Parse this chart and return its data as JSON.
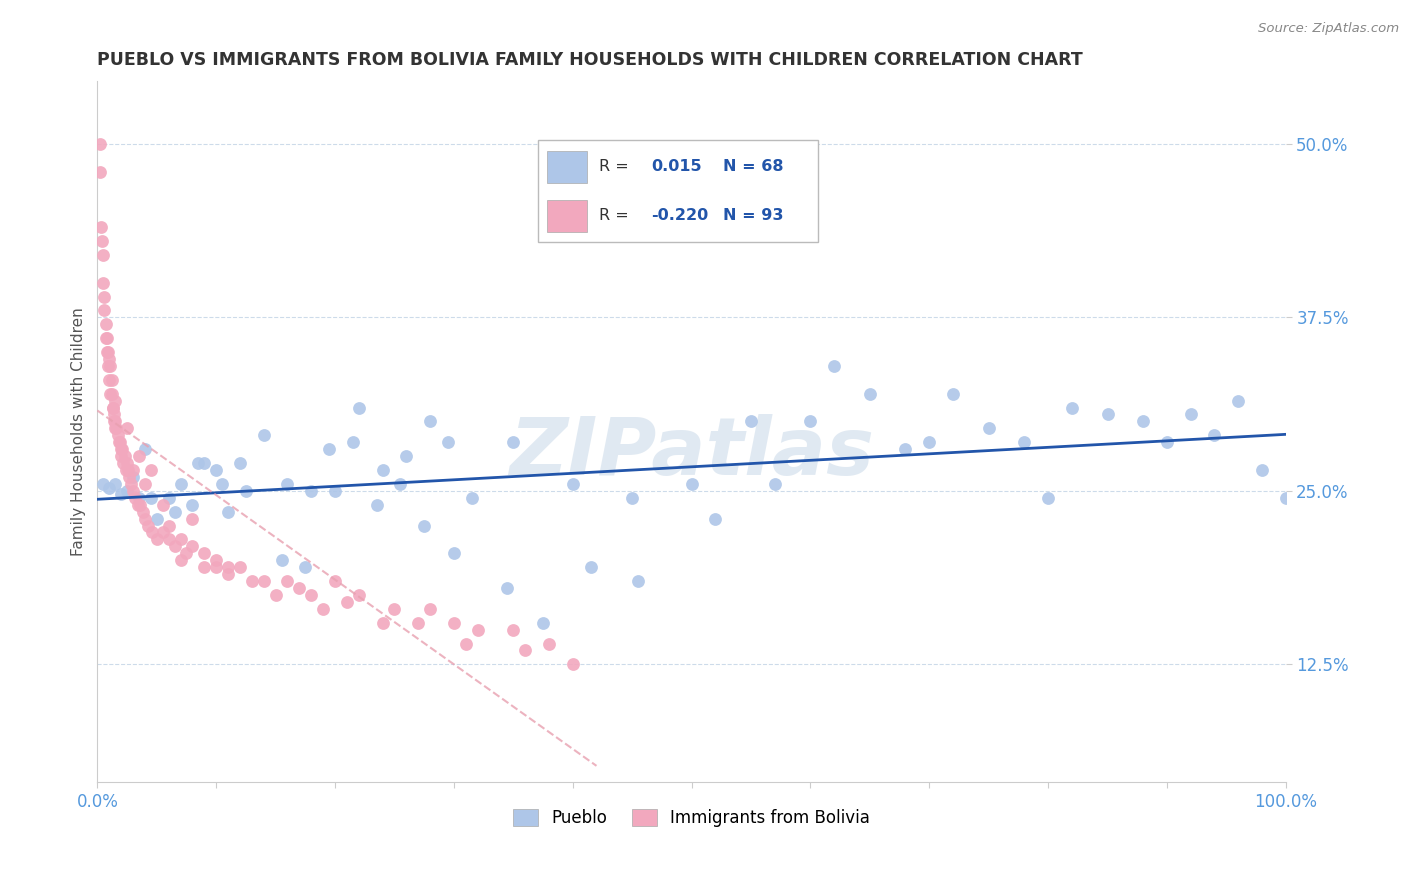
{
  "title": "PUEBLO VS IMMIGRANTS FROM BOLIVIA FAMILY HOUSEHOLDS WITH CHILDREN CORRELATION CHART",
  "source": "Source: ZipAtlas.com",
  "ylabel": "Family Households with Children",
  "yticks": [
    0.125,
    0.25,
    0.375,
    0.5
  ],
  "ytick_labels": [
    "12.5%",
    "25.0%",
    "37.5%",
    "50.0%"
  ],
  "xlim": [
    0.0,
    1.0
  ],
  "ylim": [
    0.04,
    0.545
  ],
  "legend_blue_r": "R =  0.015",
  "legend_blue_n": "N = 68",
  "legend_pink_r": "R = -0.220",
  "legend_pink_n": "N = 93",
  "blue_color": "#aec6e8",
  "pink_color": "#f2a8be",
  "blue_line_color": "#2255aa",
  "pink_line_color": "#e8a0b0",
  "watermark": "ZIPatlas",
  "tick_color": "#5599dd",
  "label_color": "#555555",
  "legend_text_color": "#2255aa",
  "blue_x": [
    0.005,
    0.01,
    0.02,
    0.025,
    0.03,
    0.035,
    0.04,
    0.05,
    0.06,
    0.07,
    0.08,
    0.09,
    0.1,
    0.11,
    0.12,
    0.14,
    0.16,
    0.18,
    0.2,
    0.22,
    0.24,
    0.26,
    0.28,
    0.3,
    0.35,
    0.4,
    0.45,
    0.5,
    0.52,
    0.55,
    0.57,
    0.6,
    0.62,
    0.65,
    0.68,
    0.7,
    0.72,
    0.75,
    0.78,
    0.8,
    0.82,
    0.85,
    0.88,
    0.9,
    0.92,
    0.94,
    0.96,
    0.98,
    1.0,
    0.015,
    0.045,
    0.065,
    0.085,
    0.105,
    0.125,
    0.155,
    0.175,
    0.195,
    0.215,
    0.235,
    0.255,
    0.275,
    0.295,
    0.315,
    0.345,
    0.375,
    0.415,
    0.455
  ],
  "blue_y": [
    0.255,
    0.252,
    0.248,
    0.25,
    0.26,
    0.245,
    0.28,
    0.23,
    0.245,
    0.255,
    0.24,
    0.27,
    0.265,
    0.235,
    0.27,
    0.29,
    0.255,
    0.25,
    0.25,
    0.31,
    0.265,
    0.275,
    0.3,
    0.205,
    0.285,
    0.255,
    0.245,
    0.255,
    0.23,
    0.3,
    0.255,
    0.3,
    0.34,
    0.32,
    0.28,
    0.285,
    0.32,
    0.295,
    0.285,
    0.245,
    0.31,
    0.305,
    0.3,
    0.285,
    0.305,
    0.29,
    0.315,
    0.265,
    0.245,
    0.255,
    0.245,
    0.235,
    0.27,
    0.255,
    0.25,
    0.2,
    0.195,
    0.28,
    0.285,
    0.24,
    0.255,
    0.225,
    0.285,
    0.245,
    0.18,
    0.155,
    0.195,
    0.185
  ],
  "pink_x": [
    0.002,
    0.003,
    0.004,
    0.005,
    0.005,
    0.006,
    0.006,
    0.007,
    0.007,
    0.008,
    0.008,
    0.009,
    0.009,
    0.01,
    0.01,
    0.011,
    0.011,
    0.012,
    0.012,
    0.013,
    0.013,
    0.014,
    0.014,
    0.015,
    0.015,
    0.016,
    0.017,
    0.018,
    0.019,
    0.02,
    0.021,
    0.022,
    0.023,
    0.024,
    0.025,
    0.026,
    0.027,
    0.028,
    0.03,
    0.032,
    0.034,
    0.036,
    0.038,
    0.04,
    0.043,
    0.046,
    0.05,
    0.055,
    0.06,
    0.065,
    0.07,
    0.075,
    0.08,
    0.09,
    0.1,
    0.11,
    0.12,
    0.14,
    0.16,
    0.18,
    0.2,
    0.22,
    0.25,
    0.28,
    0.3,
    0.32,
    0.35,
    0.38,
    0.02,
    0.03,
    0.04,
    0.06,
    0.08,
    0.1,
    0.015,
    0.025,
    0.035,
    0.045,
    0.055,
    0.07,
    0.09,
    0.11,
    0.13,
    0.15,
    0.17,
    0.19,
    0.21,
    0.24,
    0.27,
    0.31,
    0.36,
    0.4,
    0.002
  ],
  "pink_y": [
    0.48,
    0.44,
    0.43,
    0.42,
    0.4,
    0.39,
    0.38,
    0.37,
    0.36,
    0.36,
    0.35,
    0.35,
    0.34,
    0.345,
    0.33,
    0.34,
    0.32,
    0.33,
    0.32,
    0.31,
    0.31,
    0.3,
    0.305,
    0.3,
    0.295,
    0.295,
    0.29,
    0.285,
    0.285,
    0.275,
    0.28,
    0.27,
    0.275,
    0.265,
    0.27,
    0.265,
    0.26,
    0.255,
    0.25,
    0.245,
    0.24,
    0.24,
    0.235,
    0.23,
    0.225,
    0.22,
    0.215,
    0.22,
    0.215,
    0.21,
    0.2,
    0.205,
    0.21,
    0.195,
    0.195,
    0.19,
    0.195,
    0.185,
    0.185,
    0.175,
    0.185,
    0.175,
    0.165,
    0.165,
    0.155,
    0.15,
    0.15,
    0.14,
    0.28,
    0.265,
    0.255,
    0.225,
    0.23,
    0.2,
    0.315,
    0.295,
    0.275,
    0.265,
    0.24,
    0.215,
    0.205,
    0.195,
    0.185,
    0.175,
    0.18,
    0.165,
    0.17,
    0.155,
    0.155,
    0.14,
    0.135,
    0.125,
    0.5
  ]
}
